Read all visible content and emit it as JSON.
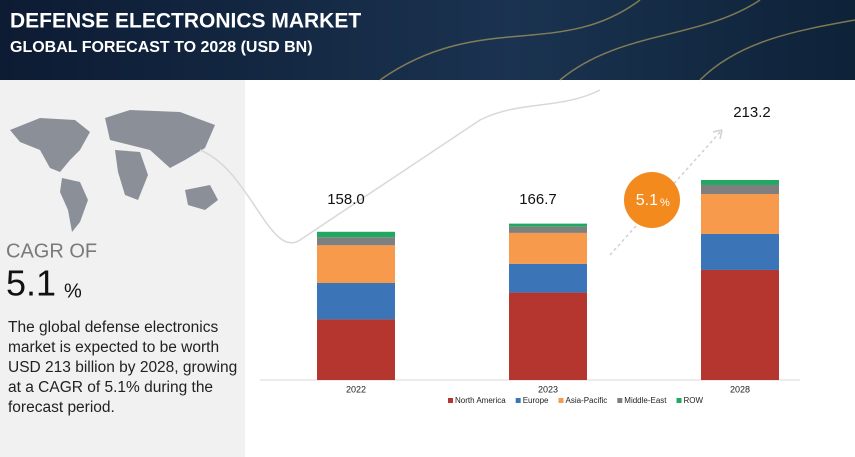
{
  "header": {
    "title": "DEFENSE ELECTRONICS MARKET",
    "subtitle": "GLOBAL FORECAST TO 2028 (USD BN)"
  },
  "sidebar": {
    "cagr_label": "CAGR OF",
    "cagr_value": 5.1,
    "cagr_unit": "%",
    "text": "The global defense electronics market is expected to be worth USD 213 billion by 2028, growing at a CAGR of 5.1% during the forecast period."
  },
  "chart_data": {
    "type": "stacked_bar",
    "categories": [
      "2022",
      "2023",
      "2028"
    ],
    "series": [
      {
        "name": "North America",
        "color": "#b5362f",
        "values": [
          64.6,
          93.2,
          117.3
        ]
      },
      {
        "name": "Europe",
        "color": "#3b75b8",
        "values": [
          38.8,
          30.7,
          38.4
        ]
      },
      {
        "name": "Asia-Pacific",
        "color": "#f79a4b",
        "values": [
          40.2,
          32.9,
          42.6
        ]
      },
      {
        "name": "Middle-East",
        "color": "#7f7f7f",
        "values": [
          8.6,
          6.6,
          9.6
        ]
      },
      {
        "name": "ROW",
        "color": "#22a862",
        "values": [
          5.8,
          3.3,
          5.3
        ]
      }
    ],
    "totals": [
      158,
      166.7,
      213.2
    ],
    "total_labels": [
      "158.0",
      "166.7",
      "213.2"
    ],
    "legend": "bottom"
  }
}
